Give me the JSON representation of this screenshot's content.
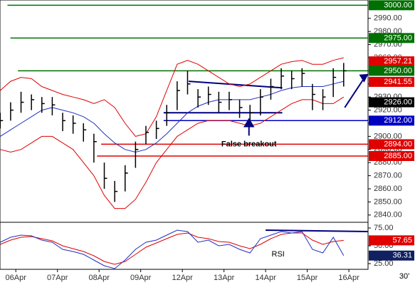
{
  "chart_data": [
    {
      "type": "ohlc",
      "x": [
        -0.375,
        -0.125,
        0.125,
        0.375,
        0.625,
        0.875,
        1.125,
        1.375,
        1.625,
        1.875,
        2.125,
        2.375,
        2.625,
        2.875,
        3.125,
        3.375,
        3.625,
        3.875,
        4.125,
        4.375,
        4.625,
        4.875,
        5.125,
        5.375,
        5.625,
        5.875,
        6.125,
        6.375,
        6.625,
        6.875,
        7.125,
        7.375,
        7.625,
        7.875
      ],
      "high": [
        2918,
        2926,
        2934,
        2932,
        2930,
        2930,
        2918,
        2916,
        2910,
        2902,
        2880,
        2866,
        2878,
        2896,
        2908,
        2912,
        2924,
        2942,
        2950,
        2936,
        2938,
        2934,
        2934,
        2928,
        2924,
        2936,
        2944,
        2952,
        2950,
        2952,
        2940,
        2936,
        2952,
        2956
      ],
      "low": [
        2906,
        2912,
        2918,
        2920,
        2918,
        2916,
        2904,
        2902,
        2896,
        2880,
        2860,
        2850,
        2858,
        2876,
        2894,
        2898,
        2908,
        2920,
        2932,
        2922,
        2924,
        2918,
        2920,
        2914,
        2912,
        2916,
        2928,
        2936,
        2936,
        2938,
        2920,
        2920,
        2930,
        2938
      ],
      "close": [
        2912,
        2920,
        2926,
        2928,
        2925,
        2924,
        2912,
        2910,
        2905,
        2896,
        2868,
        2858,
        2872,
        2890,
        2903,
        2906,
        2918,
        2935,
        2940,
        2930,
        2932,
        2926,
        2928,
        2922,
        2918,
        2930,
        2938,
        2946,
        2944,
        2948,
        2932,
        2930,
        2945,
        2950
      ],
      "bar_color": "#000000",
      "series": [
        {
          "color": "#e00000",
          "values": [
            2935,
            2942,
            2945,
            2944,
            2938,
            2935,
            2932,
            2930,
            2928,
            2925,
            2928,
            2922,
            2910,
            2900,
            2902,
            2915,
            2935,
            2955,
            2958,
            2955,
            2950,
            2945,
            2940,
            2938,
            2940,
            2945,
            2950,
            2955,
            2957,
            2958,
            2955,
            2955,
            2958,
            2960
          ]
        },
        {
          "color": "#e00000",
          "values": [
            2890,
            2888,
            2890,
            2895,
            2900,
            2900,
            2895,
            2890,
            2880,
            2870,
            2855,
            2845,
            2845,
            2852,
            2865,
            2880,
            2890,
            2900,
            2905,
            2910,
            2912,
            2912,
            2912,
            2910,
            2908,
            2910,
            2915,
            2920,
            2925,
            2928,
            2928,
            2925,
            2925,
            2930
          ]
        },
        {
          "color": "#2030c0",
          "values": [
            2900,
            2905,
            2910,
            2915,
            2920,
            2922,
            2920,
            2918,
            2915,
            2910,
            2902,
            2895,
            2890,
            2888,
            2890,
            2895,
            2902,
            2910,
            2918,
            2923,
            2926,
            2928,
            2928,
            2928,
            2928,
            2930,
            2932,
            2935,
            2937,
            2938,
            2938,
            2938,
            2940,
            2942
          ]
        }
      ],
      "ylim": [
        2835,
        3004
      ],
      "xlim": [
        -0.38,
        8.46
      ],
      "yticks": [
        {
          "value": 2840,
          "label": "2840.00"
        },
        {
          "value": 2850,
          "label": "2850.00"
        },
        {
          "value": 2860,
          "label": "2860.00"
        },
        {
          "value": 2870,
          "label": "2870.00"
        },
        {
          "value": 2880,
          "label": "2880.00"
        },
        {
          "value": 2890,
          "label": "2890.00"
        },
        {
          "value": 2900,
          "label": "2900.00"
        },
        {
          "value": 2910,
          "label": "2910.00"
        },
        {
          "value": 2920,
          "label": "2920.00"
        },
        {
          "value": 2930,
          "label": "2930.00"
        },
        {
          "value": 2940,
          "label": "2940.00"
        },
        {
          "value": 2950,
          "label": "2950.00"
        },
        {
          "value": 2960,
          "label": "2960.00"
        },
        {
          "value": 2970,
          "label": "2970.00"
        },
        {
          "value": 2980,
          "label": "2980.00"
        },
        {
          "value": 2990,
          "label": "2990.00"
        }
      ],
      "levels": [
        {
          "value": 3000,
          "label": "3000.00",
          "color": "#007000",
          "start": -0.2
        },
        {
          "value": 2975,
          "label": "2975.00",
          "color": "#007000",
          "start": -0.13
        },
        {
          "value": 2957.21,
          "label": "2957.21",
          "color": "#e00000"
        },
        {
          "value": 2950,
          "label": "2950.00",
          "color": "#007000",
          "start": 0.05
        },
        {
          "value": 2941.55,
          "label": "2941.55",
          "color": "#e00000"
        },
        {
          "value": 2926,
          "label": "2926.00",
          "color": "#000000"
        },
        {
          "value": 2912,
          "label": "2912.00",
          "color": "#0000c0",
          "start": 3.55
        },
        {
          "value": 2894,
          "label": "2894.00",
          "color": "#e00000",
          "start": 2.05
        },
        {
          "value": 2885,
          "label": "2885.00",
          "color": "#e00000",
          "start": 1.95
        }
      ],
      "trendlines": [
        {
          "x": [
            4.15,
            6.4
          ],
          "y": [
            2942,
            2937
          ],
          "color": "#000080"
        },
        {
          "x": [
            3.55,
            6.4
          ],
          "y": [
            2918,
            2918
          ],
          "color": "#000080"
        },
        {
          "x": [
            7.9,
            8.4
          ],
          "y": [
            2922,
            2946
          ],
          "color": "#000080",
          "arrow": true
        }
      ],
      "annotation": {
        "text": "False breakout",
        "x": 5.6,
        "y": 2894,
        "arrow_to": 2913
      }
    },
    {
      "type": "line",
      "x": [
        -0.375,
        -0.125,
        0.125,
        0.375,
        0.625,
        0.875,
        1.125,
        1.375,
        1.625,
        1.875,
        2.125,
        2.375,
        2.625,
        2.875,
        3.125,
        3.375,
        3.625,
        3.875,
        4.125,
        4.375,
        4.625,
        4.875,
        5.125,
        5.375,
        5.625,
        5.875,
        6.125,
        6.375,
        6.625,
        6.875,
        7.125,
        7.375,
        7.625,
        7.875
      ],
      "series": [
        {
          "color": "#e00000",
          "values": [
            52,
            58,
            62,
            63,
            60,
            57,
            50,
            46,
            42,
            36,
            28,
            24,
            28,
            38,
            48,
            54,
            60,
            66,
            68,
            62,
            60,
            56,
            55,
            50,
            46,
            52,
            60,
            66,
            68,
            68,
            58,
            52,
            56,
            57.65
          ]
        },
        {
          "color": "#2030c0",
          "values": [
            55,
            62,
            65,
            64,
            58,
            55,
            45,
            42,
            38,
            30,
            22,
            18,
            30,
            45,
            55,
            58,
            65,
            72,
            70,
            55,
            58,
            50,
            52,
            45,
            40,
            60,
            65,
            70,
            68,
            70,
            45,
            40,
            62,
            36.31
          ]
        }
      ],
      "ylim": [
        20,
        80
      ],
      "xlim": [
        -0.38,
        8.46
      ],
      "yticks": [
        {
          "value": 25,
          "label": "25.00"
        },
        {
          "value": 50,
          "label": "50.00"
        },
        {
          "value": 75,
          "label": "75.00"
        }
      ],
      "levels": [
        {
          "value": 57.65,
          "label": "57.65",
          "color": "#e00000"
        },
        {
          "value": 36.31,
          "label": "36.31",
          "color": "#102060"
        }
      ],
      "trendlines": [
        {
          "x": [
            6.0,
            8.45
          ],
          "y": [
            72,
            70
          ],
          "color": "#000080"
        }
      ],
      "annotation": {
        "text": "RSI",
        "x": 6.3,
        "y": 38
      },
      "xticks": [
        {
          "value": 0,
          "label": "06Apr"
        },
        {
          "value": 1,
          "label": "07Apr"
        },
        {
          "value": 2,
          "label": "08Apr"
        },
        {
          "value": 3,
          "label": "09Apr"
        },
        {
          "value": 4,
          "label": "12Apr"
        },
        {
          "value": 5,
          "label": "13Apr"
        },
        {
          "value": 6,
          "label": "14Apr"
        },
        {
          "value": 7,
          "label": "15Apr"
        },
        {
          "value": 8,
          "label": "16Apr"
        }
      ],
      "timeframe": "30'"
    }
  ]
}
